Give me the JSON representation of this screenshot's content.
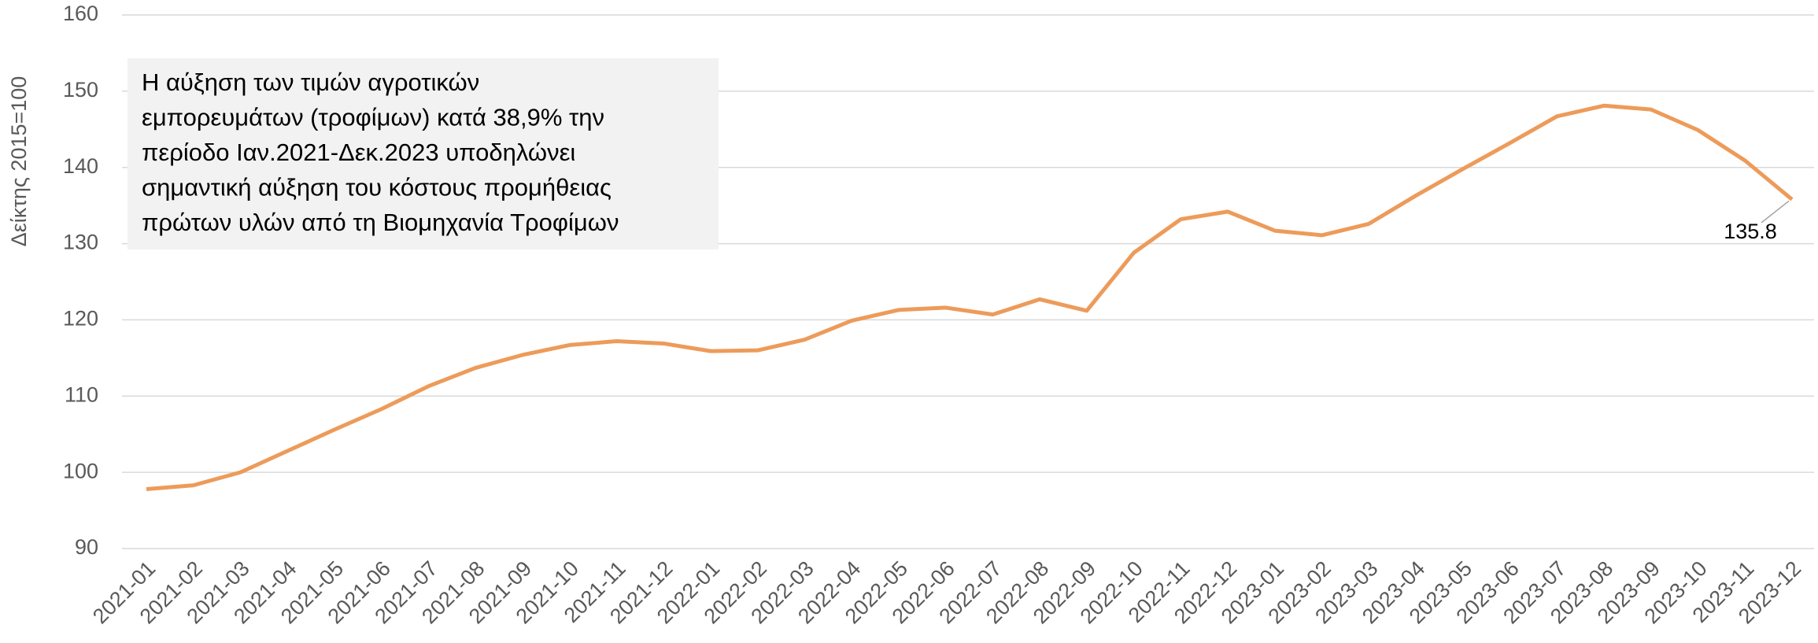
{
  "chart_data": {
    "type": "line",
    "y_label": "Δείκτης 2015=100",
    "annotation": [
      "Η αύξηση των τιμών αγροτικών",
      "εμπορευμάτων (τροφίμων) κατά 38,9% την",
      "περίοδο Ιαν.2021-Δεκ.2023 υποδηλώνει",
      "σημαντική αύξηση του κόστους προμήθειας",
      "πρώτων υλών από τη Βιομηχανία Τροφίμων"
    ],
    "categories": [
      "2021-01",
      "2021-02",
      "2021-03",
      "2021-04",
      "2021-05",
      "2021-06",
      "2021-07",
      "2021-08",
      "2021-09",
      "2021-10",
      "2021-11",
      "2021-12",
      "2022-01",
      "2022-02",
      "2022-03",
      "2022-04",
      "2022-05",
      "2022-06",
      "2022-07",
      "2022-08",
      "2022-09",
      "2022-10",
      "2022-11",
      "2022-12",
      "2023-01",
      "2023-02",
      "2023-03",
      "2023-04",
      "2023-05",
      "2023-06",
      "2023-07",
      "2023-08",
      "2023-09",
      "2023-10",
      "2023-11",
      "2023-12"
    ],
    "series": [
      {
        "color": "#ed9b5a",
        "values": [
          97.8,
          98.3,
          100.0,
          102.8,
          105.6,
          108.3,
          111.3,
          113.7,
          115.4,
          116.7,
          117.2,
          116.9,
          115.9,
          116.0,
          117.4,
          119.9,
          121.3,
          121.6,
          120.7,
          122.7,
          121.2,
          128.8,
          133.2,
          134.2,
          131.7,
          131.1,
          132.6,
          136.3,
          139.8,
          143.2,
          146.7,
          148.1,
          147.6,
          144.9,
          140.9,
          135.8
        ]
      }
    ],
    "ylim": [
      90,
      160
    ],
    "yticks": [
      90,
      100,
      110,
      120,
      130,
      140,
      150,
      160
    ],
    "grid": true
  }
}
